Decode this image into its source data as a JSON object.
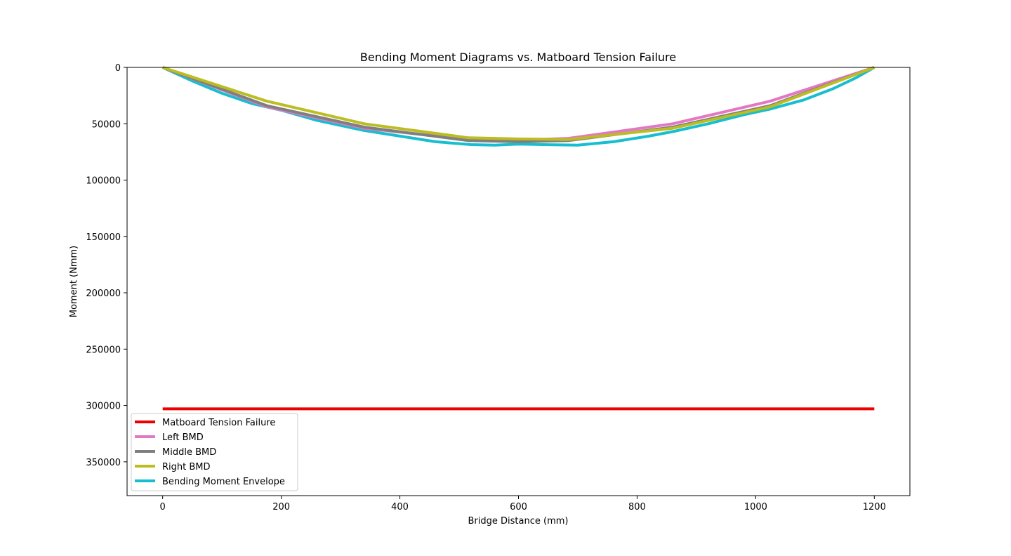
{
  "chart_data": {
    "type": "line",
    "title": "Bending Moment Diagrams vs. Matboard Tension Failure",
    "xlabel": "Bridge Distance (mm)",
    "ylabel": "Moment (Nmm)",
    "xlim": [
      -60,
      1260
    ],
    "ylim": [
      380000,
      0
    ],
    "y_inverted": true,
    "xticks": [
      0,
      200,
      400,
      600,
      800,
      1000,
      1200
    ],
    "yticks": [
      0,
      50000,
      100000,
      150000,
      200000,
      250000,
      300000,
      350000
    ],
    "grid": false,
    "legend_position": "lower-left",
    "series": [
      {
        "name": "Matboard Tension Failure",
        "color": "#ee0000",
        "x": [
          0,
          1200
        ],
        "y": [
          303000,
          303000
        ]
      },
      {
        "name": "Left BMD",
        "color": "#e377c2",
        "x": [
          0,
          176,
          340,
          516,
          600,
          684,
          860,
          1024,
          1200
        ],
        "y": [
          0,
          35000,
          54000,
          64000,
          64500,
          63000,
          50000,
          30000,
          0
        ]
      },
      {
        "name": "Middle BMD",
        "color": "#7f7f7f",
        "x": [
          0,
          176,
          340,
          516,
          600,
          684,
          860,
          1024,
          1200
        ],
        "y": [
          0,
          34000,
          53000,
          65000,
          66000,
          65000,
          53000,
          34000,
          0
        ]
      },
      {
        "name": "Right BMD",
        "color": "#bcbd22",
        "x": [
          0,
          176,
          340,
          516,
          600,
          684,
          860,
          1024,
          1200
        ],
        "y": [
          0,
          30000,
          50000,
          62500,
          63500,
          64000,
          54000,
          35000,
          0
        ]
      },
      {
        "name": "Bending Moment Envelope",
        "color": "#17becf",
        "x": [
          0,
          50,
          100,
          150,
          200,
          260,
          340,
          400,
          460,
          520,
          560,
          600,
          640,
          700,
          760,
          820,
          860,
          920,
          980,
          1024,
          1080,
          1130,
          1170,
          1200
        ],
        "y": [
          0,
          12000,
          23000,
          32000,
          38000,
          47000,
          56000,
          61000,
          66000,
          68500,
          69000,
          68000,
          68500,
          69000,
          66000,
          61000,
          57000,
          50000,
          42000,
          37000,
          29000,
          19000,
          9000,
          0
        ]
      }
    ]
  }
}
